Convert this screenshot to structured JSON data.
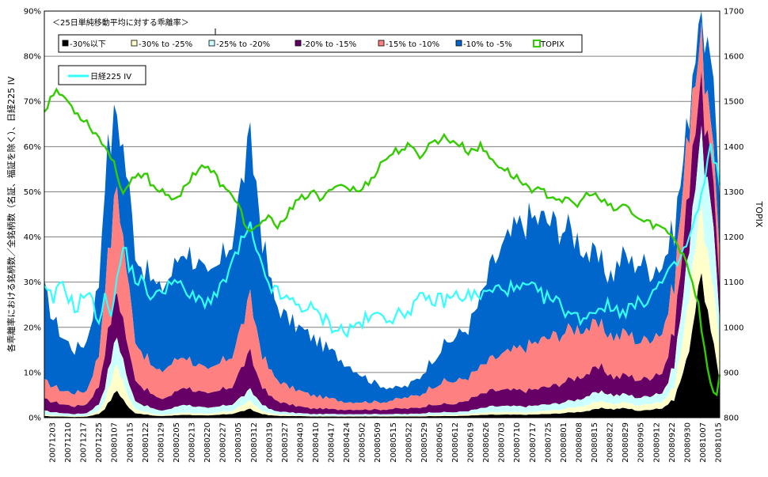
{
  "chart_data": {
    "type": "area",
    "title": "＜25日単純移動平均に対する乖離率＞",
    "ylabel_left": "各乖離率における銘柄数／全銘柄数（名証、福証を除く）、日経225 IV",
    "ylabel_right": "TOPIX",
    "ylim_left": [
      0,
      0.9
    ],
    "ylim_right": [
      800,
      1700
    ],
    "yticks_left": [
      "0%",
      "10%",
      "20%",
      "30%",
      "40%",
      "50%",
      "60%",
      "70%",
      "80%",
      "90%"
    ],
    "yticks_right": [
      "800",
      "900",
      "1000",
      "1100",
      "1200",
      "1300",
      "1400",
      "1500",
      "1600",
      "1700"
    ],
    "x_tick_labels": [
      "20071203",
      "20071210",
      "20071217",
      "20071225",
      "20080107",
      "20080115",
      "20080122",
      "20080129",
      "20080205",
      "20080213",
      "20080220",
      "20080227",
      "20080305",
      "20080312",
      "20080319",
      "20080327",
      "20080403",
      "20080410",
      "20080417",
      "20080424",
      "20080502",
      "20080509",
      "20080515",
      "20080522",
      "20080529",
      "20080605",
      "20080612",
      "20080619",
      "20080626",
      "20080703",
      "20080710",
      "20080717",
      "20080725",
      "20080801",
      "20080808",
      "20080815",
      "20080822",
      "20080829",
      "20080905",
      "20080912",
      "20080922",
      "20080930",
      "20081007",
      "20081015"
    ],
    "legend_bands": [
      {
        "name": "-30%以下",
        "color": "#000000"
      },
      {
        "name": "-30% to -25%",
        "color": "#FFFFCC"
      },
      {
        "name": "-25% to -20%",
        "color": "#CCFFFF"
      },
      {
        "name": "-20% to -15%",
        "color": "#660066"
      },
      {
        "name": "-15% to -10%",
        "color": "#FF8080"
      },
      {
        "name": "-10% to -5%",
        "color": "#0066CC"
      }
    ],
    "legend_lines": [
      {
        "name": "TOPIX",
        "color": "#33CC00"
      },
      {
        "name": "日経225 IV",
        "color": "#33FFFF"
      }
    ],
    "grid": true,
    "cum_knots": {
      "x": [
        0,
        3,
        6,
        10,
        14,
        18,
        20,
        22,
        24,
        26,
        28,
        30,
        32,
        34,
        36,
        38,
        42,
        46,
        50,
        54,
        58,
        62,
        66,
        68,
        70,
        72,
        74,
        76,
        80,
        84,
        88,
        92,
        96,
        100,
        104,
        108,
        112,
        116,
        120,
        124,
        128,
        132,
        136,
        140,
        144,
        148,
        152,
        156,
        160,
        164,
        168,
        172,
        176,
        180,
        184,
        186,
        188,
        190,
        192,
        194,
        196,
        198,
        200,
        202,
        204,
        206,
        208,
        210,
        212,
        214,
        216,
        218,
        220,
        222,
        223
      ],
      "b1": [
        0.003,
        0.002,
        0.002,
        0.001,
        0.002,
        0.008,
        0.02,
        0.04,
        0.06,
        0.04,
        0.02,
        0.01,
        0.008,
        0.006,
        0.004,
        0.003,
        0.004,
        0.006,
        0.005,
        0.004,
        0.006,
        0.008,
        0.015,
        0.018,
        0.012,
        0.008,
        0.005,
        0.004,
        0.003,
        0.003,
        0.002,
        0.002,
        0.002,
        0.002,
        0.002,
        0.002,
        0.002,
        0.002,
        0.002,
        0.002,
        0.003,
        0.003,
        0.003,
        0.004,
        0.005,
        0.006,
        0.006,
        0.006,
        0.006,
        0.007,
        0.008,
        0.01,
        0.012,
        0.015,
        0.02,
        0.02,
        0.018,
        0.02,
        0.02,
        0.018,
        0.015,
        0.015,
        0.018,
        0.02,
        0.02,
        0.03,
        0.04,
        0.08,
        0.12,
        0.2,
        0.3,
        0.28,
        0.18,
        0.12,
        0.08
      ],
      "b2": [
        0.006,
        0.005,
        0.004,
        0.003,
        0.004,
        0.015,
        0.04,
        0.08,
        0.12,
        0.08,
        0.04,
        0.02,
        0.015,
        0.012,
        0.008,
        0.006,
        0.008,
        0.012,
        0.01,
        0.008,
        0.012,
        0.015,
        0.03,
        0.035,
        0.025,
        0.015,
        0.01,
        0.008,
        0.006,
        0.005,
        0.004,
        0.004,
        0.004,
        0.004,
        0.004,
        0.004,
        0.004,
        0.004,
        0.004,
        0.004,
        0.006,
        0.006,
        0.006,
        0.008,
        0.01,
        0.012,
        0.012,
        0.012,
        0.012,
        0.014,
        0.016,
        0.02,
        0.024,
        0.03,
        0.035,
        0.035,
        0.03,
        0.032,
        0.034,
        0.03,
        0.028,
        0.028,
        0.032,
        0.035,
        0.035,
        0.05,
        0.07,
        0.14,
        0.22,
        0.35,
        0.45,
        0.42,
        0.3,
        0.22,
        0.15
      ],
      "b3": [
        0.015,
        0.012,
        0.01,
        0.008,
        0.01,
        0.03,
        0.07,
        0.13,
        0.18,
        0.13,
        0.07,
        0.04,
        0.03,
        0.025,
        0.02,
        0.015,
        0.02,
        0.03,
        0.025,
        0.02,
        0.025,
        0.03,
        0.05,
        0.06,
        0.045,
        0.03,
        0.02,
        0.015,
        0.012,
        0.01,
        0.008,
        0.008,
        0.008,
        0.008,
        0.008,
        0.008,
        0.008,
        0.008,
        0.008,
        0.009,
        0.012,
        0.012,
        0.012,
        0.015,
        0.02,
        0.025,
        0.025,
        0.025,
        0.025,
        0.028,
        0.03,
        0.035,
        0.04,
        0.05,
        0.055,
        0.055,
        0.05,
        0.05,
        0.052,
        0.048,
        0.045,
        0.045,
        0.05,
        0.055,
        0.055,
        0.08,
        0.12,
        0.22,
        0.32,
        0.48,
        0.6,
        0.58,
        0.45,
        0.32,
        0.22
      ],
      "b4": [
        0.04,
        0.035,
        0.03,
        0.025,
        0.03,
        0.07,
        0.15,
        0.22,
        0.28,
        0.22,
        0.14,
        0.09,
        0.07,
        0.06,
        0.05,
        0.04,
        0.05,
        0.07,
        0.06,
        0.05,
        0.06,
        0.07,
        0.12,
        0.14,
        0.1,
        0.07,
        0.05,
        0.04,
        0.03,
        0.025,
        0.02,
        0.02,
        0.018,
        0.018,
        0.018,
        0.018,
        0.018,
        0.02,
        0.02,
        0.022,
        0.03,
        0.03,
        0.03,
        0.04,
        0.05,
        0.06,
        0.06,
        0.06,
        0.06,
        0.065,
        0.07,
        0.08,
        0.09,
        0.1,
        0.11,
        0.1,
        0.09,
        0.09,
        0.095,
        0.09,
        0.085,
        0.085,
        0.09,
        0.1,
        0.1,
        0.14,
        0.2,
        0.32,
        0.45,
        0.62,
        0.72,
        0.68,
        0.55,
        0.4,
        0.3
      ],
      "b5": [
        0.08,
        0.07,
        0.06,
        0.055,
        0.06,
        0.14,
        0.3,
        0.4,
        0.52,
        0.4,
        0.28,
        0.18,
        0.15,
        0.13,
        0.11,
        0.1,
        0.12,
        0.14,
        0.12,
        0.1,
        0.12,
        0.14,
        0.22,
        0.26,
        0.2,
        0.14,
        0.11,
        0.09,
        0.07,
        0.06,
        0.05,
        0.045,
        0.04,
        0.035,
        0.035,
        0.035,
        0.035,
        0.04,
        0.045,
        0.05,
        0.07,
        0.08,
        0.08,
        0.09,
        0.11,
        0.13,
        0.14,
        0.15,
        0.16,
        0.17,
        0.18,
        0.19,
        0.2,
        0.2,
        0.2,
        0.19,
        0.18,
        0.18,
        0.19,
        0.18,
        0.17,
        0.17,
        0.18,
        0.19,
        0.19,
        0.24,
        0.3,
        0.45,
        0.58,
        0.75,
        0.82,
        0.78,
        0.62,
        0.48,
        0.38
      ],
      "b6": [
        0.28,
        0.22,
        0.18,
        0.15,
        0.17,
        0.3,
        0.55,
        0.62,
        0.68,
        0.6,
        0.5,
        0.38,
        0.34,
        0.32,
        0.3,
        0.28,
        0.32,
        0.38,
        0.35,
        0.3,
        0.34,
        0.4,
        0.55,
        0.6,
        0.52,
        0.4,
        0.32,
        0.26,
        0.22,
        0.2,
        0.18,
        0.16,
        0.14,
        0.12,
        0.1,
        0.08,
        0.07,
        0.065,
        0.07,
        0.09,
        0.13,
        0.16,
        0.18,
        0.2,
        0.26,
        0.34,
        0.38,
        0.42,
        0.44,
        0.44,
        0.43,
        0.42,
        0.4,
        0.36,
        0.34,
        0.32,
        0.32,
        0.35,
        0.36,
        0.34,
        0.35,
        0.34,
        0.33,
        0.34,
        0.34,
        0.38,
        0.42,
        0.52,
        0.62,
        0.78,
        0.9,
        0.88,
        0.75,
        0.62,
        0.5
      ]
    },
    "topix_knots": {
      "x": [
        0,
        3,
        6,
        10,
        14,
        18,
        22,
        26,
        30,
        34,
        36,
        40,
        44,
        48,
        52,
        56,
        60,
        64,
        66,
        68,
        70,
        72,
        74,
        76,
        80,
        84,
        88,
        92,
        96,
        100,
        104,
        108,
        112,
        116,
        120,
        124,
        128,
        132,
        136,
        140,
        144,
        148,
        152,
        156,
        160,
        164,
        168,
        172,
        176,
        180,
        184,
        188,
        192,
        196,
        200,
        204,
        208,
        210,
        212,
        214,
        216,
        218,
        220,
        222,
        223
      ],
      "v": [
        1480,
        1520,
        1515,
        1480,
        1455,
        1420,
        1380,
        1300,
        1330,
        1335,
        1310,
        1300,
        1280,
        1330,
        1360,
        1340,
        1300,
        1280,
        1230,
        1210,
        1215,
        1230,
        1250,
        1220,
        1250,
        1280,
        1300,
        1280,
        1320,
        1310,
        1300,
        1330,
        1370,
        1390,
        1400,
        1380,
        1410,
        1420,
        1410,
        1390,
        1400,
        1370,
        1350,
        1330,
        1310,
        1300,
        1290,
        1280,
        1270,
        1300,
        1280,
        1260,
        1270,
        1240,
        1230,
        1220,
        1200,
        1170,
        1150,
        1100,
        1050,
        950,
        870,
        850,
        900
      ]
    },
    "iv_knots": {
      "x": [
        0,
        3,
        6,
        10,
        14,
        18,
        20,
        22,
        24,
        26,
        28,
        30,
        32,
        34,
        36,
        38,
        42,
        46,
        50,
        54,
        58,
        62,
        66,
        68,
        70,
        72,
        74,
        76,
        80,
        84,
        88,
        92,
        96,
        100,
        104,
        108,
        112,
        116,
        120,
        124,
        128,
        132,
        136,
        140,
        144,
        148,
        152,
        156,
        160,
        164,
        168,
        172,
        176,
        180,
        184,
        188,
        192,
        196,
        200,
        204,
        208,
        212,
        216,
        218,
        220,
        222,
        223
      ],
      "v": [
        0.28,
        0.26,
        0.3,
        0.24,
        0.28,
        0.22,
        0.26,
        0.24,
        0.3,
        0.38,
        0.34,
        0.31,
        0.3,
        0.28,
        0.27,
        0.27,
        0.31,
        0.28,
        0.26,
        0.26,
        0.28,
        0.34,
        0.4,
        0.42,
        0.36,
        0.33,
        0.3,
        0.28,
        0.26,
        0.25,
        0.24,
        0.22,
        0.2,
        0.19,
        0.21,
        0.22,
        0.23,
        0.22,
        0.24,
        0.26,
        0.26,
        0.26,
        0.27,
        0.27,
        0.27,
        0.28,
        0.29,
        0.28,
        0.29,
        0.27,
        0.26,
        0.24,
        0.22,
        0.23,
        0.25,
        0.24,
        0.24,
        0.25,
        0.27,
        0.3,
        0.33,
        0.38,
        0.46,
        0.52,
        0.6,
        0.55,
        0.5
      ]
    }
  }
}
